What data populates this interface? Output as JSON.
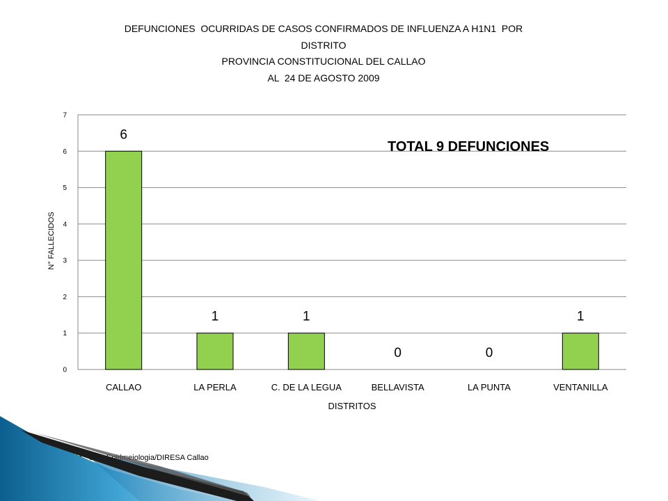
{
  "chart_data": {
    "type": "bar",
    "title_lines": [
      "DEFUNCIONES  OCURRIDAS DE CASOS CONFIRMADOS DE INFLUENZA A H1N1  POR",
      "DISTRITO",
      "PROVINCIA CONSTITUCIONAL DEL CALLAO",
      "AL  24 DE AGOSTO 2009"
    ],
    "categories": [
      "CALLAO",
      "LA PERLA",
      "C. DE LA LEGUA",
      "BELLAVISTA",
      "LA PUNTA",
      "VENTANILLA"
    ],
    "values": [
      6,
      1,
      1,
      0,
      0,
      1
    ],
    "data_labels": [
      "6",
      "1",
      "1",
      "0",
      "0",
      "1"
    ],
    "xlabel": "DISTRITOS",
    "ylabel": "N° FALLECIDOS",
    "ylim": [
      0,
      7
    ],
    "yticks": [
      "0",
      "1",
      "2",
      "3",
      "4",
      "5",
      "6",
      "7"
    ],
    "grid": true,
    "annotation": "TOTAL 9 DEFUNCIONES",
    "bar_color": "#92d050",
    "legend": "none"
  },
  "footer": {
    "credit": "Elaborado : Ofic. Epidmeiologia/DIRESA Callao"
  }
}
